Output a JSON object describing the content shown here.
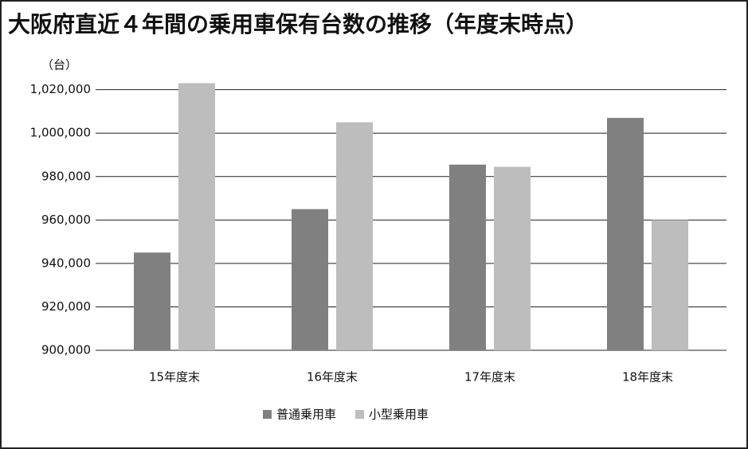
{
  "chart_data": {
    "type": "bar",
    "title": "大阪府直近４年間の乗用車保有台数の推移（年度末時点）",
    "y_unit_label": "（台）",
    "categories": [
      "15年度末",
      "16年度末",
      "17年度末",
      "18年度末"
    ],
    "series": [
      {
        "name": "普通乗用車",
        "color": "#808080",
        "values": [
          945000,
          965000,
          985500,
          1007000
        ]
      },
      {
        "name": "小型乗用車",
        "color": "#bdbdbd",
        "values": [
          1023000,
          1005000,
          984500,
          960000
        ]
      }
    ],
    "ylim": [
      900000,
      1025000
    ],
    "yticks": [
      {
        "value": 900000,
        "label": "900,000"
      },
      {
        "value": 920000,
        "label": "920,000"
      },
      {
        "value": 940000,
        "label": "940,000"
      },
      {
        "value": 960000,
        "label": "960,000"
      },
      {
        "value": 980000,
        "label": "980,000"
      },
      {
        "value": 1000000,
        "label": "1,000,000"
      },
      {
        "value": 1020000,
        "label": "1,020,000"
      }
    ],
    "grid": true,
    "legend": "bottom"
  }
}
